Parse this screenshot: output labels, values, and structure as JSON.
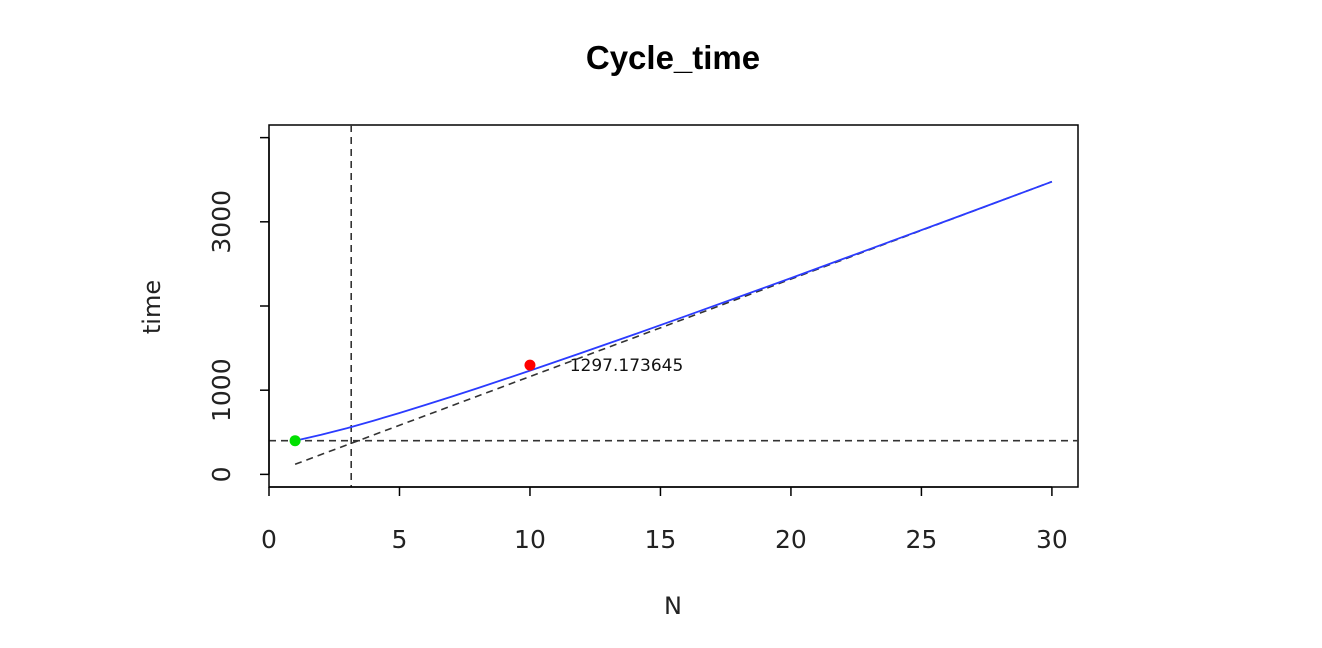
{
  "chart_data": {
    "type": "line",
    "title": "Cycle_time",
    "xlabel": "N",
    "ylabel": "time",
    "xlim": [
      0,
      31
    ],
    "ylim": [
      -150,
      4150
    ],
    "x_ticks": [
      0,
      5,
      10,
      15,
      20,
      25,
      30
    ],
    "y_ticks": [
      0,
      1000,
      2000,
      3000,
      4000
    ],
    "y_tick_labels": [
      "0",
      "1000",
      "",
      "3000",
      ""
    ],
    "grid": false,
    "series": [
      {
        "color": "#2b3bff",
        "x": [
          1,
          2,
          3,
          4,
          5,
          6,
          7,
          8,
          9,
          10,
          12,
          14,
          16,
          18,
          20,
          22,
          24,
          26,
          28,
          30
        ],
        "y": [
          400,
          470,
          550,
          637,
          729,
          825,
          924,
          1025,
          1128,
          1233,
          1446,
          1663,
          1884,
          2107,
          2332,
          2559,
          2787,
          3016,
          3246,
          3477
        ]
      }
    ],
    "reference_lines": [
      {
        "kind": "horizontal",
        "y": 400,
        "style": "dashed"
      },
      {
        "kind": "vertical",
        "x": 3.15,
        "style": "dashed"
      },
      {
        "kind": "asymptote",
        "points": [
          [
            1,
            120
          ],
          [
            30,
            3477
          ]
        ],
        "style": "dashed"
      }
    ],
    "points": [
      {
        "x": 1,
        "y": 400,
        "color": "#00e000"
      },
      {
        "x": 10,
        "y": 1297.173645,
        "color": "#ff0000"
      }
    ],
    "annotations": [
      {
        "text": "1297.173645",
        "x": 13.7,
        "y": 1297
      }
    ]
  }
}
